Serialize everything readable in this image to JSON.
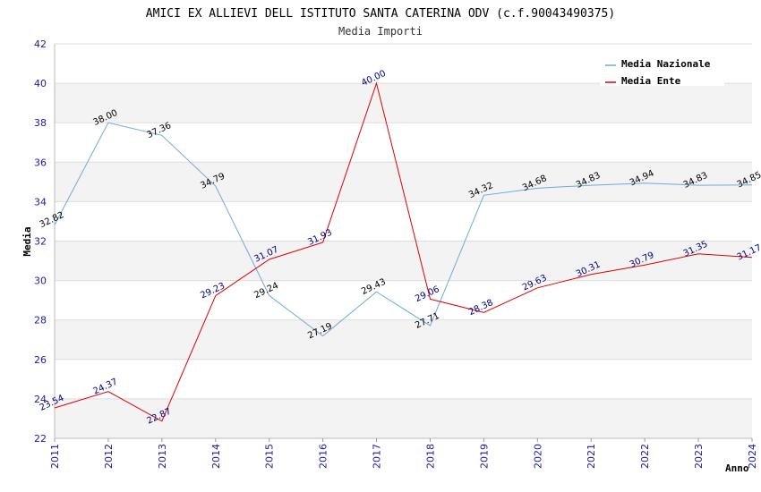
{
  "chart_data": {
    "type": "line",
    "title": "AMICI EX ALLIEVI DELL ISTITUTO SANTA CATERINA ODV (c.f.90043490375)",
    "subtitle": "Media Importi",
    "xlabel": "Anno",
    "ylabel": "Media",
    "ylim": [
      22,
      42
    ],
    "yticks": [
      22,
      24,
      26,
      28,
      30,
      32,
      34,
      36,
      38,
      40,
      42
    ],
    "x": [
      "2011",
      "2012",
      "2013",
      "2014",
      "2015",
      "2016",
      "2017",
      "2018",
      "2019",
      "2020",
      "2021",
      "2022",
      "2023",
      "2024"
    ],
    "grid": true,
    "legend_position": "top-right",
    "series": [
      {
        "name": "Media Nazionale",
        "color": "#6fa8e0",
        "label_color": "#000000",
        "values": [
          32.82,
          38.0,
          37.36,
          34.79,
          29.24,
          27.19,
          29.43,
          27.71,
          34.32,
          34.68,
          34.83,
          34.94,
          34.83,
          34.85
        ]
      },
      {
        "name": "Media Ente",
        "color": "#e00000",
        "label_color": "#000080",
        "values": [
          23.54,
          24.37,
          22.87,
          29.23,
          31.07,
          31.93,
          40.0,
          29.06,
          28.38,
          29.63,
          30.31,
          30.79,
          31.35,
          31.17
        ]
      }
    ]
  }
}
